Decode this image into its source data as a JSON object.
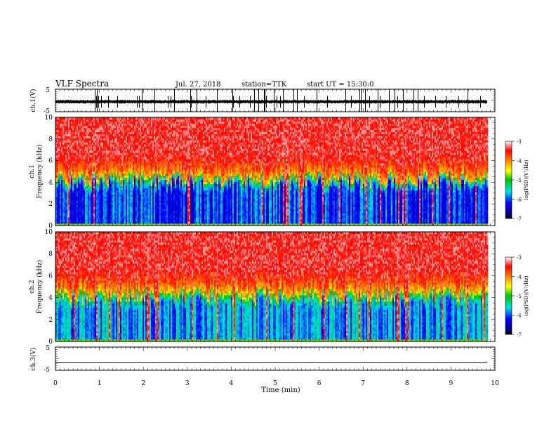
{
  "header": {
    "title": "VLF Spectra",
    "date": "Jul. 27, 2018",
    "station": "station=TTK",
    "start": "start UT =  15:30:0"
  },
  "chart_data": [
    {
      "type": "line",
      "panel": "ch1-waveform",
      "ylabel": "ch.1(V)",
      "ytick_labels": [
        "5",
        "-5"
      ],
      "ylim": [
        -5,
        5
      ],
      "xlim": [
        0,
        10
      ],
      "baseline": -0.5,
      "noise_band": [
        -1.4,
        0.3
      ],
      "spike_range": [
        -5,
        5
      ],
      "data_end_min": 9.82
    },
    {
      "type": "heatmap",
      "panel": "ch1-spectrogram",
      "ylabel": "ch.1",
      "ylabel2": "Frequency (kHz)",
      "ytick_labels": [
        "0",
        "2",
        "4",
        "6",
        "8",
        "10"
      ],
      "ylim": [
        0,
        10
      ],
      "xlim": [
        0,
        10
      ],
      "data_end_min": 9.82,
      "cutoff_khz": 4.3,
      "colorbar": {
        "label": "log(PSD)(V²/Hz)",
        "ticks": [
          "-3",
          "-4",
          "-5",
          "-6",
          "-7"
        ],
        "range": [
          -7,
          -3
        ]
      }
    },
    {
      "type": "heatmap",
      "panel": "ch2-spectrogram",
      "ylabel": "ch.2",
      "ylabel2": "Frequency (kHz)",
      "ytick_labels": [
        "0",
        "2",
        "4",
        "6",
        "8",
        "10"
      ],
      "ylim": [
        0,
        10
      ],
      "xlim": [
        0,
        10
      ],
      "data_end_min": 9.82,
      "cutoff_khz": 4.3,
      "colorbar": {
        "label": "log(PSD)(V²/Hz)",
        "ticks": [
          "-3",
          "-4",
          "-5",
          "-6",
          "-7"
        ],
        "range": [
          -7,
          -3
        ]
      }
    },
    {
      "type": "line",
      "panel": "ch3-waveform",
      "ylabel": "ch.3(V)",
      "ytick_labels": [
        "5",
        "-5"
      ],
      "ylim": [
        -5,
        5
      ],
      "xlim": [
        0,
        10
      ],
      "baseline": -1.6,
      "data_end_min": 9.82,
      "xlabel": "Time (min)",
      "xtick_labels": [
        "0",
        "1",
        "2",
        "3",
        "4",
        "5",
        "6",
        "7",
        "8",
        "9",
        "10"
      ]
    }
  ]
}
